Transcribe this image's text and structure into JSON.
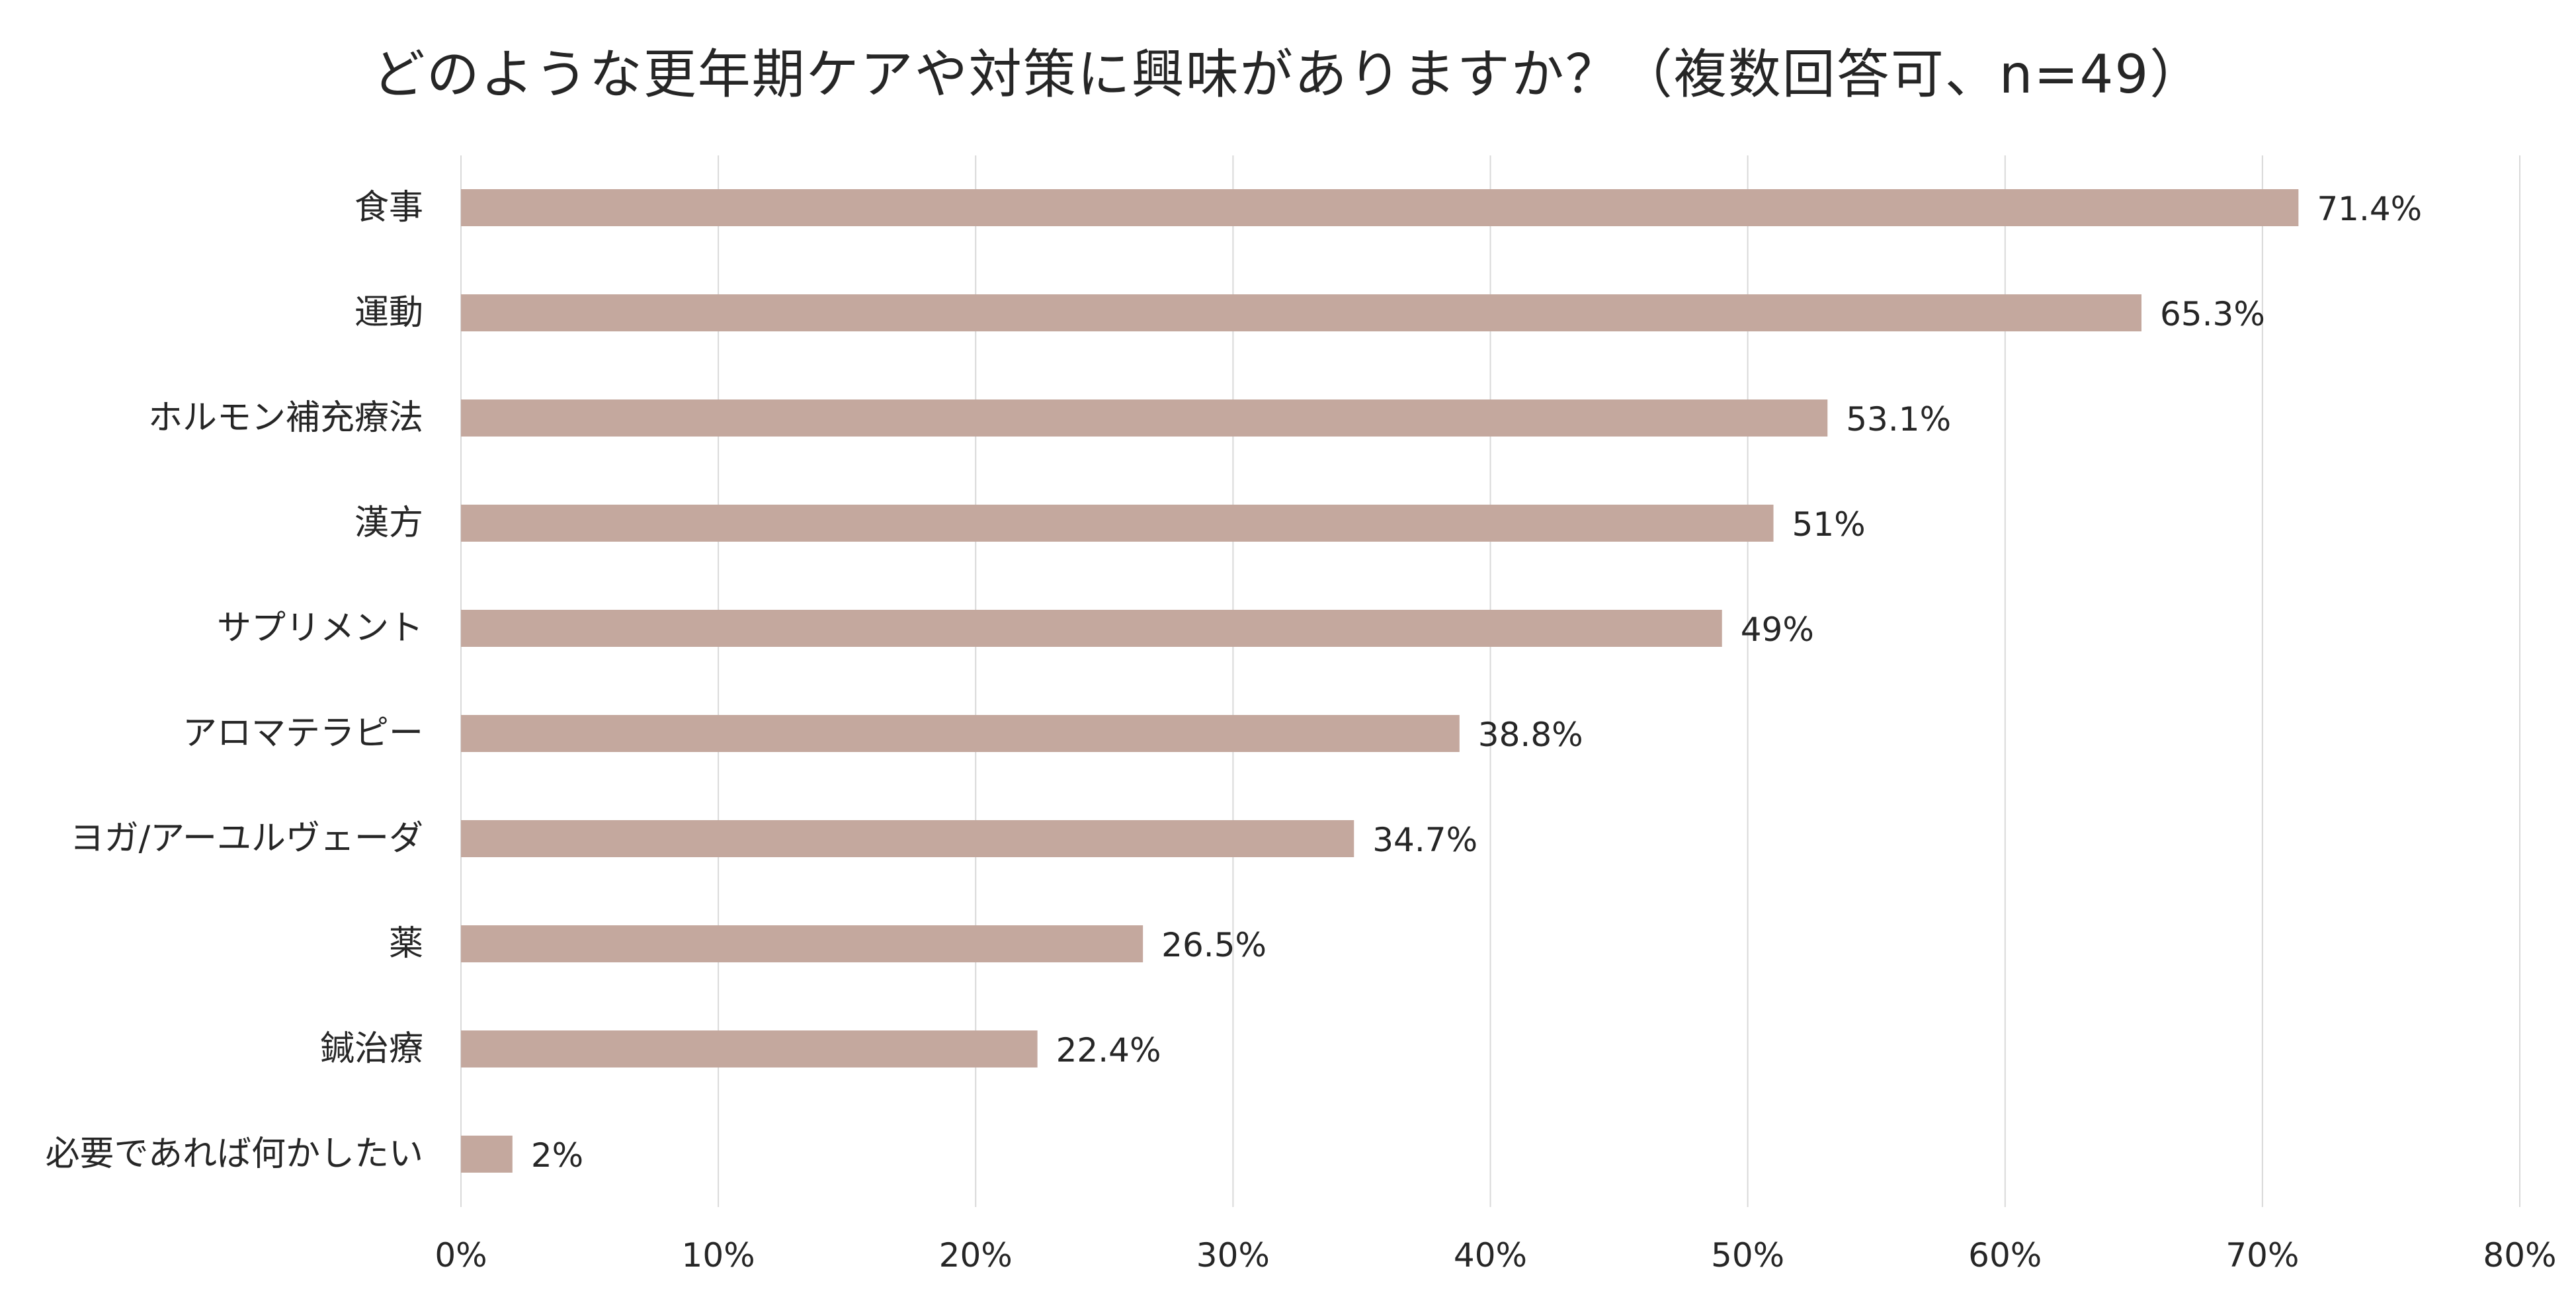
{
  "chart_data": {
    "type": "bar",
    "orientation": "horizontal",
    "title": "どのような更年期ケアや対策に興味がありますか？（複数回答可、n=49）",
    "categories": [
      "食事",
      "運動",
      "ホルモン補充療法",
      "漢方",
      "サプリメント",
      "アロマテラピー",
      "ヨガ/アーユルヴェーダ",
      "薬",
      "鍼治療",
      "必要であれば何かしたい"
    ],
    "values": [
      71.4,
      65.3,
      53.1,
      51,
      49,
      38.8,
      34.7,
      26.5,
      22.4,
      2
    ],
    "value_labels": [
      "71.4%",
      "65.3%",
      "53.1%",
      "51%",
      "49%",
      "38.8%",
      "34.7%",
      "26.5%",
      "22.4%",
      "2%"
    ],
    "xlim": [
      0,
      80
    ],
    "x_ticks": [
      0,
      10,
      20,
      30,
      40,
      50,
      60,
      70,
      80
    ],
    "x_tick_labels": [
      "0%",
      "10%",
      "20%",
      "30%",
      "40%",
      "50%",
      "60%",
      "70%",
      "80%"
    ],
    "grid": true,
    "legend": false,
    "bar_color": "#c4a89e",
    "grid_color": "#d9d9d9"
  }
}
